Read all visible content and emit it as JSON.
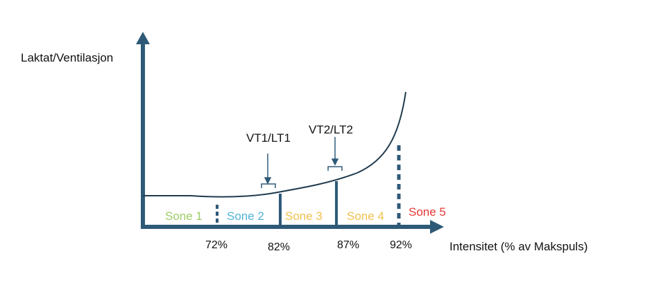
{
  "diagram": {
    "y_axis_label": "Laktat/Ventilasjon",
    "x_axis_label": "Intensitet (% av Makspuls)",
    "thresholds": [
      {
        "label": "VT1/LT1"
      },
      {
        "label": "VT2/LT2"
      }
    ],
    "zones": [
      {
        "label": "Sone 1",
        "color": "#9ccc65"
      },
      {
        "label": "Sone 2",
        "color": "#4fb3d9"
      },
      {
        "label": "Sone 3",
        "color": "#f2c14e"
      },
      {
        "label": "Sone 4",
        "color": "#f2c14e"
      },
      {
        "label": "Sone 5",
        "color": "#e53935"
      }
    ],
    "percent_labels": [
      "72%",
      "82%",
      "87%",
      "92%"
    ],
    "colors": {
      "axis": "#2e5a78",
      "curve": "#1f3a4d",
      "text": "#111111"
    }
  }
}
